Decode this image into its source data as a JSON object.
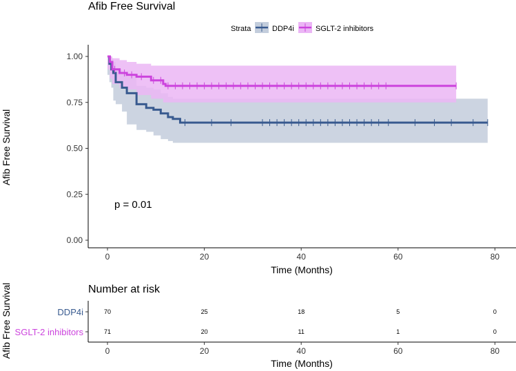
{
  "chart_data": [
    {
      "type": "line",
      "title": "Afib Free Survival",
      "ylabel": "Afib Free Survival",
      "xlabel": "Time (Months)",
      "xlim": [
        -3,
        81
      ],
      "ylim": [
        -0.05,
        1.05
      ],
      "xticks": [
        0,
        20,
        40,
        60,
        80
      ],
      "yticks": [
        0.0,
        0.25,
        0.5,
        0.75,
        1.0
      ],
      "ytick_labels": [
        "0.00",
        "0.25",
        "0.50",
        "0.75",
        "1.00"
      ],
      "legend": {
        "title": "Strata",
        "position": "top-center",
        "entries": [
          "DDP4i",
          "SGLT-2 inhibitors"
        ]
      },
      "annotation": "p = 0.01",
      "series": [
        {
          "name": "DDP4i",
          "color": "#385a8f",
          "band_color": "#c3cddc",
          "x": [
            0,
            0.4,
            0.8,
            1.2,
            1.7,
            3.0,
            4.0,
            6.0,
            8.0,
            9.5,
            11.0,
            12.5,
            13.5,
            15.0,
            78.5
          ],
          "y": [
            1.0,
            0.96,
            0.93,
            0.91,
            0.86,
            0.83,
            0.8,
            0.74,
            0.72,
            0.71,
            0.69,
            0.67,
            0.66,
            0.64,
            0.64
          ],
          "lower": [
            1.0,
            0.9,
            0.86,
            0.83,
            0.76,
            0.74,
            0.7,
            0.63,
            0.6,
            0.59,
            0.57,
            0.55,
            0.54,
            0.53,
            0.53
          ],
          "upper": [
            1.0,
            1.0,
            0.99,
            0.97,
            0.93,
            0.91,
            0.89,
            0.84,
            0.83,
            0.82,
            0.8,
            0.78,
            0.77,
            0.77,
            0.77
          ],
          "censor_x": [
            16,
            21.5,
            25.5,
            32,
            33.5,
            35,
            36.5,
            38,
            39.5,
            41,
            42.5,
            44,
            45.5,
            47,
            48.5,
            50,
            51.5,
            53,
            54.5,
            56,
            58,
            63.5,
            67.5,
            71,
            75.5,
            78.5
          ]
        },
        {
          "name": "SGLT-2 inhibitors",
          "color": "#cc44dd",
          "band_color": "#ebb6f5",
          "x": [
            0,
            0.5,
            1.0,
            2.5,
            4.0,
            6.0,
            9.0,
            11.5,
            12.0,
            72.0
          ],
          "y": [
            1.0,
            0.97,
            0.93,
            0.91,
            0.9,
            0.89,
            0.87,
            0.85,
            0.84,
            0.84
          ],
          "lower": [
            1.0,
            0.93,
            0.88,
            0.85,
            0.83,
            0.82,
            0.79,
            0.77,
            0.75,
            0.75
          ],
          "upper": [
            1.0,
            1.0,
            0.99,
            0.98,
            0.97,
            0.96,
            0.95,
            0.95,
            0.95,
            0.95
          ],
          "censor_x": [
            1.5,
            3.5,
            5.0,
            7.0,
            9.5,
            11.0,
            12.5,
            14,
            15.5,
            17,
            18.5,
            20,
            21.5,
            23,
            24.5,
            26,
            27.5,
            29,
            30.5,
            32,
            33.5,
            35,
            36.5,
            38,
            39.5,
            41,
            42.5,
            44,
            45.5,
            47,
            48.5,
            50,
            51.5,
            53,
            54.5,
            56,
            57.5,
            72
          ]
        }
      ]
    },
    {
      "type": "table",
      "title": "Number at risk",
      "ylabel": "Afib Free Survival",
      "xlabel": "Time (Months)",
      "xticks": [
        0,
        20,
        40,
        60,
        80
      ],
      "rows": [
        {
          "name": "DDP4i",
          "color": "#385a8f",
          "values": [
            "70",
            "25",
            "18",
            "5",
            "0"
          ]
        },
        {
          "name": "SGLT-2 inhibitors",
          "color": "#cc44dd",
          "values": [
            "71",
            "20",
            "11",
            "1",
            "0"
          ]
        }
      ]
    }
  ]
}
